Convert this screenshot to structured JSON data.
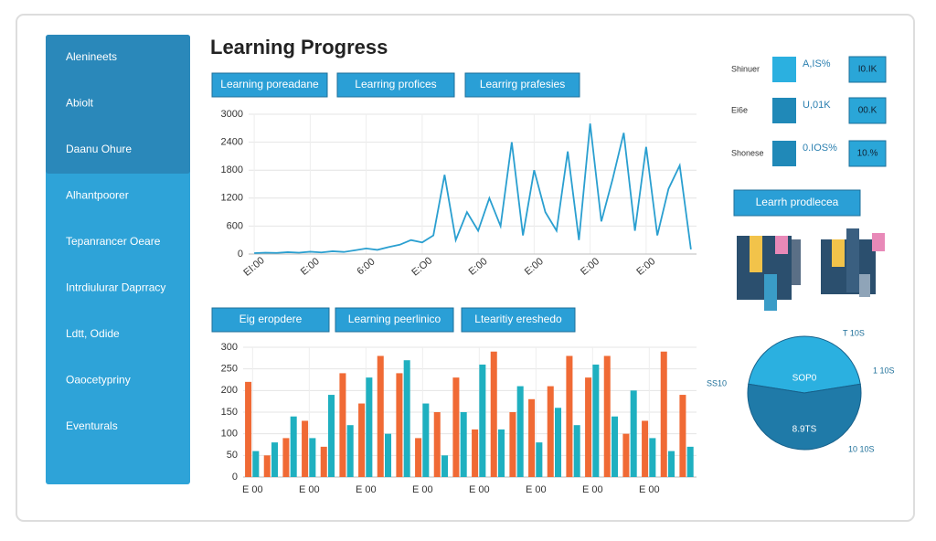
{
  "header": {
    "title": "Learning Progress"
  },
  "sidebar": {
    "items": [
      "Alenineets",
      "Abiolt",
      "Daanu Ohure",
      "Alhantpoorer",
      "Tepanrancer Oeare",
      "Intrdiulurar Daprracy",
      "Ldtt, Odide",
      "Oaocetypriny",
      "Eventurals"
    ]
  },
  "buttons_top": [
    "Learning poreadane",
    "Learring profices",
    "Learrirg prafesies"
  ],
  "buttons_bottom": [
    "Eig eropdere",
    "Learning peerlinico",
    "Ltearitiy ereshedo"
  ],
  "stats": [
    {
      "label": "Shinuer",
      "value": "A,IS%",
      "badge": "I0.IK"
    },
    {
      "label": "Ei6e",
      "value": "U,01K",
      "badge": "00.K"
    },
    {
      "label": "Shonese",
      "value": "0.IOS%",
      "badge": "10.%"
    }
  ],
  "side_button": "Learrh prodlecea",
  "chart_data": [
    {
      "type": "line",
      "color": "#2a9fd0",
      "categories": [
        "EI:00",
        null,
        null,
        null,
        null,
        "E:00",
        null,
        null,
        null,
        null,
        "6:00",
        null,
        null,
        null,
        null,
        "E:O0",
        null,
        null,
        null,
        null,
        "E:00",
        null,
        null,
        null,
        null,
        "E:00",
        null,
        null,
        null,
        null,
        "E:00",
        null,
        null,
        null,
        null,
        "E:00",
        null,
        null,
        null,
        null
      ],
      "values": [
        20,
        30,
        25,
        40,
        30,
        50,
        35,
        60,
        45,
        80,
        120,
        90,
        150,
        200,
        300,
        250,
        400,
        1700,
        300,
        900,
        500,
        1200,
        600,
        2400,
        400,
        1800,
        900,
        500,
        2200,
        300,
        2800,
        700,
        1600,
        2600,
        500,
        2300,
        400,
        1400,
        1900,
        100
      ],
      "ylim": [
        0,
        3000
      ],
      "yticks": [
        0,
        600,
        1200,
        1800,
        2400,
        3000
      ],
      "grid": true
    },
    {
      "type": "bar",
      "categories": [
        "E 00",
        null,
        null,
        "E 00",
        null,
        null,
        "E 00",
        null,
        null,
        "E 00",
        null,
        null,
        "E 00",
        null,
        null,
        "E 00",
        null,
        null,
        "E 00",
        null,
        null,
        "E 00",
        null,
        null
      ],
      "series": [
        {
          "color": "#f06a35",
          "values": [
            220,
            50,
            90,
            130,
            70,
            240,
            170,
            280,
            240,
            90,
            150,
            230,
            110,
            290,
            150,
            180,
            210,
            280,
            230,
            280,
            100,
            130,
            290,
            190
          ]
        },
        {
          "color": "#1fb0c0",
          "values": [
            60,
            80,
            140,
            90,
            190,
            120,
            230,
            100,
            270,
            170,
            50,
            150,
            260,
            110,
            210,
            80,
            160,
            120,
            260,
            140,
            200,
            90,
            60,
            70
          ]
        }
      ],
      "ylim": [
        0,
        300
      ],
      "yticks": [
        0,
        50,
        100,
        150,
        200,
        250,
        300
      ],
      "grid": true
    },
    {
      "type": "pie",
      "categories": [
        "SOP0",
        "8.9TS"
      ],
      "values": [
        45,
        55
      ],
      "colors": [
        "#2bb0e0",
        "#1f7aa8"
      ],
      "annotations": [
        "SS10",
        "T 10S",
        "1 10S",
        "10 10S"
      ]
    }
  ]
}
